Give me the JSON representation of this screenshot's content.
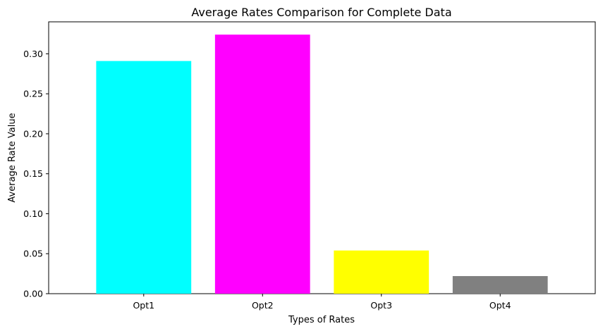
{
  "chart_data": {
    "type": "bar",
    "title": "Average Rates Comparison for Complete Data",
    "xlabel": "Types of Rates",
    "ylabel": "Average Rate Value",
    "categories": [
      "Opt1",
      "Opt2",
      "Opt3",
      "Opt4"
    ],
    "values": [
      0.291,
      0.324,
      0.054,
      0.022
    ],
    "colors": [
      "#00ffff",
      "#ff00ff",
      "#ffff00",
      "#808080"
    ],
    "ylim": [
      0,
      0.34
    ],
    "yticks": [
      0.0,
      0.05,
      0.1,
      0.15,
      0.2,
      0.25,
      0.3
    ],
    "ytick_labels": [
      "0.00",
      "0.05",
      "0.10",
      "0.15",
      "0.20",
      "0.25",
      "0.30"
    ],
    "grid": false,
    "legend": "none"
  }
}
